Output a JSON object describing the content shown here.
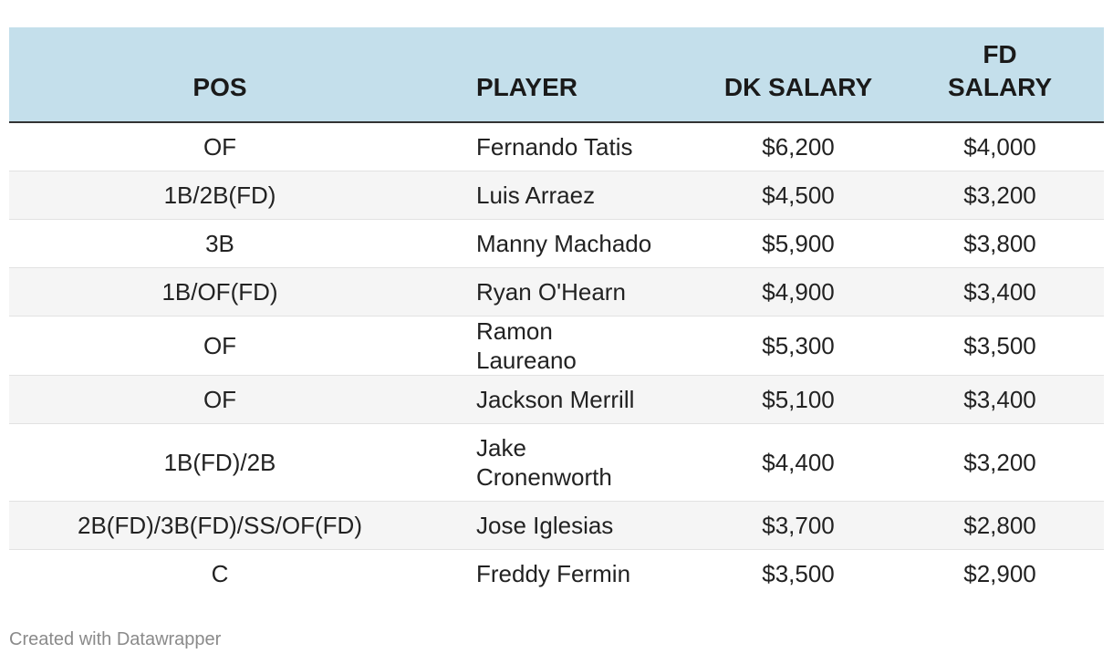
{
  "table": {
    "columns": [
      {
        "key": "pos",
        "label": "POS"
      },
      {
        "key": "player",
        "label": "PLAYER"
      },
      {
        "key": "dk",
        "label": "DK SALARY"
      },
      {
        "key": "fd",
        "label": "FD SALARY"
      }
    ],
    "header_fill": "#c4dfeb",
    "rows": [
      {
        "pos": "OF",
        "player": "Fernando Tatis",
        "dk": "$6,200",
        "fd": "$4,000"
      },
      {
        "pos": "1B/2B(FD)",
        "player": "Luis Arraez",
        "dk": "$4,500",
        "fd": "$3,200"
      },
      {
        "pos": "3B",
        "player": "Manny Machado",
        "dk": "$5,900",
        "fd": "$3,800"
      },
      {
        "pos": "1B/OF(FD)",
        "player": "Ryan O'Hearn",
        "dk": "$4,900",
        "fd": "$3,400"
      },
      {
        "pos": "OF",
        "player": "Ramon Laureano",
        "dk": "$5,300",
        "fd": "$3,500"
      },
      {
        "pos": "OF",
        "player": "Jackson Merrill",
        "dk": "$5,100",
        "fd": "$3,400"
      },
      {
        "pos": "1B(FD)/2B",
        "player": "Jake Cronenworth",
        "dk": "$4,400",
        "fd": "$3,200"
      },
      {
        "pos": "2B(FD)/3B(FD)/SS/OF(FD)",
        "player": "Jose Iglesias",
        "dk": "$3,700",
        "fd": "$2,800"
      },
      {
        "pos": "C",
        "player": "Freddy Fermin",
        "dk": "$3,500",
        "fd": "$2,900"
      }
    ]
  },
  "footer": {
    "credit": "Created with Datawrapper"
  }
}
